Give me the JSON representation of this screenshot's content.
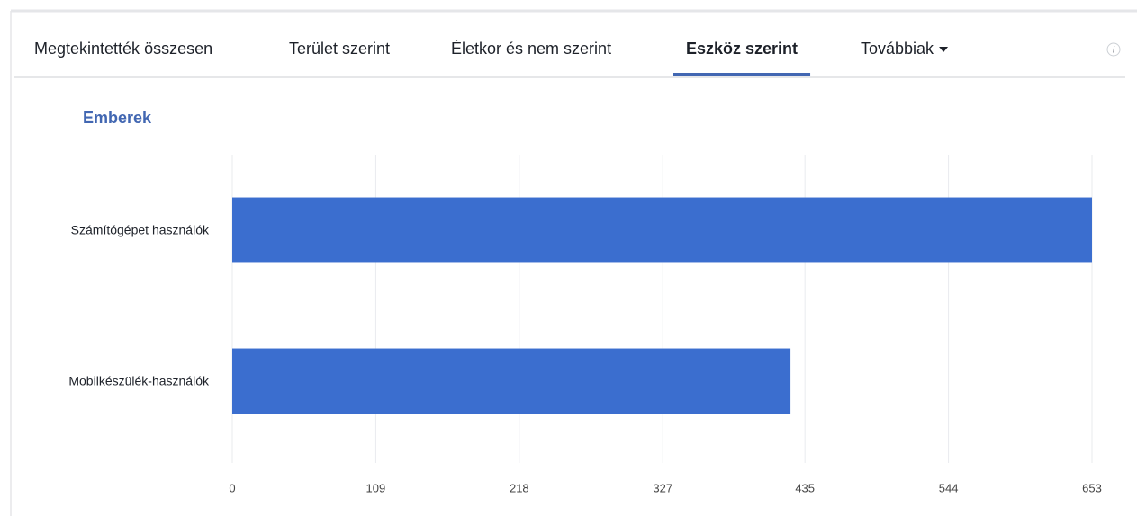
{
  "tabs": [
    "Megtekintették összesen",
    "Terület szerint",
    "Életkor és nem szerint",
    "Eszköz szerint",
    "Továbbiak"
  ],
  "active_tab": 3,
  "info_icon": "i",
  "chart_data": {
    "type": "bar",
    "orientation": "horizontal",
    "title": "Emberek",
    "categories": [
      "Számítógépet használók",
      "Mobilkészülék-használók"
    ],
    "values": [
      653,
      424
    ],
    "color": "#3b6ecf",
    "xlim": [
      0,
      653
    ],
    "xticks": [
      0,
      109,
      218,
      327,
      435,
      544,
      653
    ],
    "grid": true
  }
}
